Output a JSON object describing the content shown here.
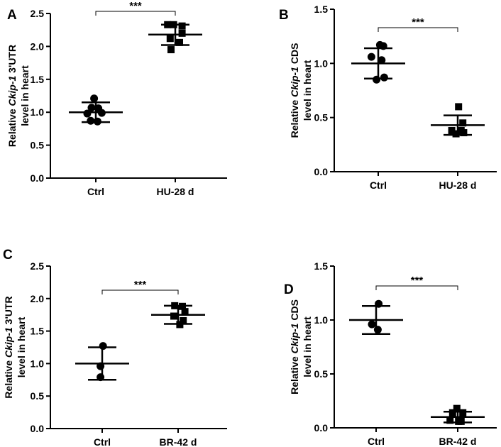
{
  "chart_data": [
    {
      "type": "scatter",
      "panel": "A",
      "categories": [
        "Ctrl",
        "HU-28 d"
      ],
      "ylabel_prefix": "Relative ",
      "ylabel_gene": "Ckip-1",
      "ylabel_suffix": " 3'UTR",
      "ylabel_line2": "level in heart",
      "ylim": [
        0,
        2.5
      ],
      "yticks": [
        "0.0",
        "0.5",
        "1.0",
        "1.5",
        "2.0",
        "2.5"
      ],
      "significance": "***",
      "series": [
        {
          "name": "Ctrl",
          "marker": "circle",
          "mean": 1.0,
          "sd_upper": 1.15,
          "sd_lower": 0.85,
          "points": [
            [
              -0.1,
              1.21
            ],
            [
              -0.25,
              1.07
            ],
            [
              0.15,
              1.06
            ],
            [
              0.35,
              0.99
            ],
            [
              -0.5,
              0.98
            ],
            [
              -0.3,
              0.87
            ],
            [
              0.1,
              0.86
            ]
          ]
        },
        {
          "name": "HU-28 d",
          "marker": "square",
          "mean": 2.18,
          "sd_upper": 2.33,
          "sd_lower": 2.02,
          "points": [
            [
              -0.45,
              2.33
            ],
            [
              -0.1,
              2.33
            ],
            [
              0.4,
              2.31
            ],
            [
              0.4,
              2.2
            ],
            [
              -0.3,
              2.12
            ],
            [
              0.25,
              2.06
            ],
            [
              -0.25,
              1.95
            ]
          ]
        }
      ]
    },
    {
      "type": "scatter",
      "panel": "B",
      "categories": [
        "Ctrl",
        "HU-28 d"
      ],
      "ylabel_prefix": "Relative ",
      "ylabel_gene": "Ckip-1",
      "ylabel_suffix": " CDS",
      "ylabel_line2": "level in heart",
      "ylim": [
        0,
        1.5
      ],
      "yticks": [
        "0.0",
        "0.5",
        "1.0",
        "1.5"
      ],
      "significance": "***",
      "series": [
        {
          "name": "Ctrl",
          "marker": "circle",
          "mean": 1.0,
          "sd_upper": 1.14,
          "sd_lower": 0.86,
          "points": [
            [
              0.1,
              1.17
            ],
            [
              0.3,
              1.16
            ],
            [
              -0.4,
              1.06
            ],
            [
              0.2,
              1.03
            ],
            [
              0.35,
              0.87
            ],
            [
              -0.1,
              0.85
            ]
          ]
        },
        {
          "name": "HU-28 d",
          "marker": "square",
          "mean": 0.43,
          "sd_upper": 0.52,
          "sd_lower": 0.34,
          "points": [
            [
              0.05,
              0.6
            ],
            [
              0.3,
              0.45
            ],
            [
              0.2,
              0.38
            ],
            [
              -0.35,
              0.38
            ],
            [
              -0.1,
              0.35
            ],
            [
              0.35,
              0.36
            ]
          ]
        }
      ]
    },
    {
      "type": "scatter",
      "panel": "C",
      "categories": [
        "Ctrl",
        "BR-42 d"
      ],
      "ylabel_prefix": "Relative ",
      "ylabel_gene": "Ckip-1",
      "ylabel_suffix": " 3'UTR",
      "ylabel_line2": "level in heart",
      "ylim": [
        0,
        2.5
      ],
      "yticks": [
        "0.0",
        "0.5",
        "1.0",
        "1.5",
        "2.0",
        "2.5"
      ],
      "significance": "***",
      "series": [
        {
          "name": "Ctrl",
          "marker": "circle",
          "mean": 1.0,
          "sd_upper": 1.25,
          "sd_lower": 0.75,
          "points": [
            [
              0.05,
              1.27
            ],
            [
              -0.1,
              0.96
            ],
            [
              -0.1,
              0.79
            ]
          ]
        },
        {
          "name": "BR-42 d",
          "marker": "square",
          "mean": 1.75,
          "sd_upper": 1.89,
          "sd_lower": 1.61,
          "points": [
            [
              -0.2,
              1.89
            ],
            [
              0.25,
              1.88
            ],
            [
              0.4,
              1.8
            ],
            [
              -0.25,
              1.73
            ],
            [
              0.3,
              1.66
            ],
            [
              0.1,
              1.6
            ]
          ]
        }
      ]
    },
    {
      "type": "scatter",
      "panel": "D",
      "categories": [
        "Ctrl",
        "BR-42 d"
      ],
      "ylabel_prefix": "Relative ",
      "ylabel_gene": "Ckip-1",
      "ylabel_suffix": " CDS",
      "ylabel_line2": "level in heart",
      "ylim": [
        0,
        1.5
      ],
      "yticks": [
        "0.0",
        "0.5",
        "1.0",
        "1.5"
      ],
      "significance": "***",
      "series": [
        {
          "name": "Ctrl",
          "marker": "circle",
          "mean": 1.0,
          "sd_upper": 1.13,
          "sd_lower": 0.87,
          "points": [
            [
              0.15,
              1.15
            ],
            [
              -0.25,
              0.96
            ],
            [
              0.1,
              0.91
            ]
          ]
        },
        {
          "name": "BR-42 d",
          "marker": "square",
          "mean": 0.1,
          "sd_upper": 0.15,
          "sd_lower": 0.05,
          "points": [
            [
              -0.05,
              0.18
            ],
            [
              -0.3,
              0.14
            ],
            [
              0.3,
              0.14
            ],
            [
              -0.45,
              0.07
            ],
            [
              0.2,
              0.06
            ],
            [
              0.05,
              0.06
            ]
          ]
        }
      ]
    }
  ]
}
